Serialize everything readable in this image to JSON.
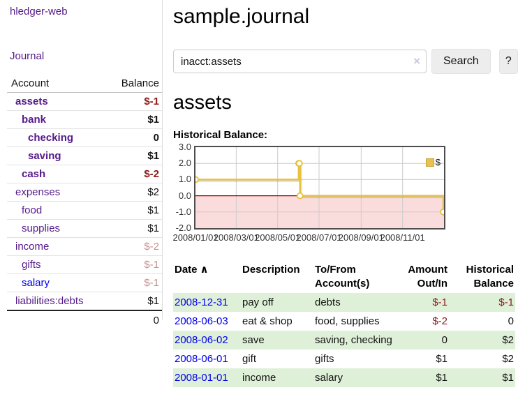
{
  "app": {
    "title": "hledger-web"
  },
  "colors": {
    "link_purple": "#551a8b",
    "link_blue": "#0000ee",
    "negative_strong": "#8b1a1a",
    "negative_faded": "#c68f8f",
    "row_stripe_green": "#dff0d8",
    "chart_line": "#e6c23f",
    "chart_marker_fill": "#fffef8",
    "chart_negative_fill": "#fbdcdc",
    "chart_zero_line": "#990000",
    "chart_grid": "#cccccc",
    "button_bg": "#ededed"
  },
  "sidebar": {
    "nav": [
      {
        "label": "Journal"
      }
    ],
    "accounts_table": {
      "headers": {
        "account": "Account",
        "balance": "Balance"
      },
      "rows": [
        {
          "name": "assets",
          "indent": 0,
          "bold": true,
          "balance": "$-1",
          "balance_color": "negative",
          "link_color": "purple"
        },
        {
          "name": "bank",
          "indent": 1,
          "bold": true,
          "balance": "$1",
          "balance_color": "normal",
          "link_color": "purple"
        },
        {
          "name": "checking",
          "indent": 2,
          "bold": true,
          "balance": "0",
          "balance_color": "normal",
          "link_color": "purple"
        },
        {
          "name": "saving",
          "indent": 2,
          "bold": true,
          "balance": "$1",
          "balance_color": "normal",
          "link_color": "purple"
        },
        {
          "name": "cash",
          "indent": 1,
          "bold": true,
          "balance": "$-2",
          "balance_color": "negative",
          "link_color": "purple"
        },
        {
          "name": "expenses",
          "indent": 0,
          "bold": false,
          "balance": "$2",
          "balance_color": "normal",
          "link_color": "purple"
        },
        {
          "name": "food",
          "indent": 1,
          "bold": false,
          "balance": "$1",
          "balance_color": "normal",
          "link_color": "purple"
        },
        {
          "name": "supplies",
          "indent": 1,
          "bold": false,
          "balance": "$1",
          "balance_color": "normal",
          "link_color": "purple"
        },
        {
          "name": "income",
          "indent": 0,
          "bold": false,
          "balance": "$-2",
          "balance_color": "faded",
          "link_color": "purple"
        },
        {
          "name": "gifts",
          "indent": 1,
          "bold": false,
          "balance": "$-1",
          "balance_color": "faded",
          "link_color": "purple"
        },
        {
          "name": "salary",
          "indent": 1,
          "bold": false,
          "balance": "$-1",
          "balance_color": "faded",
          "link_color": "blue"
        },
        {
          "name": "liabilities:debts",
          "indent": 0,
          "bold": false,
          "balance": "$1",
          "balance_color": "normal",
          "link_color": "purple"
        }
      ],
      "total": "0"
    }
  },
  "main": {
    "title": "sample.journal",
    "search": {
      "value": "inacct:assets",
      "clear_icon": "×",
      "button": "Search",
      "help_button": "?"
    },
    "account_heading": "assets",
    "chart_heading": "Historical Balance:",
    "register_table": {
      "sort_icon_glyph": "∧",
      "headers": [
        {
          "id": "date",
          "lines": [
            "Date"
          ],
          "align": "left",
          "sortable": true,
          "sort": "asc"
        },
        {
          "id": "description",
          "lines": [
            "Description"
          ],
          "align": "left"
        },
        {
          "id": "accounts",
          "lines": [
            "To/From",
            "Account(s)"
          ],
          "align": "left"
        },
        {
          "id": "amount",
          "lines": [
            "Amount",
            "Out/In"
          ],
          "align": "right"
        },
        {
          "id": "balance",
          "lines": [
            "Historical",
            "Balance"
          ],
          "align": "right"
        }
      ],
      "rows": [
        {
          "date": "2008-12-31",
          "description": "pay off",
          "accounts": "debts",
          "amount": "$-1",
          "amount_negative": true,
          "balance": "$-1",
          "balance_negative": true
        },
        {
          "date": "2008-06-03",
          "description": "eat & shop",
          "accounts": "food, supplies",
          "amount": "$-2",
          "amount_negative": true,
          "balance": "0",
          "balance_negative": false
        },
        {
          "date": "2008-06-02",
          "description": "save",
          "accounts": "saving, checking",
          "amount": "0",
          "amount_negative": false,
          "balance": "$2",
          "balance_negative": false
        },
        {
          "date": "2008-06-01",
          "description": "gift",
          "accounts": "gifts",
          "amount": "$1",
          "amount_negative": false,
          "balance": "$2",
          "balance_negative": false
        },
        {
          "date": "2008-01-01",
          "description": "income",
          "accounts": "salary",
          "amount": "$1",
          "amount_negative": false,
          "balance": "$1",
          "balance_negative": false
        }
      ]
    }
  },
  "chart_data": {
    "type": "line",
    "step": true,
    "title": "Historical Balance:",
    "series": [
      {
        "name": "$",
        "points": [
          [
            "2008-01-01",
            1
          ],
          [
            "2008-06-01",
            2
          ],
          [
            "2008-06-02",
            2
          ],
          [
            "2008-06-03",
            0
          ],
          [
            "2008-12-31",
            -1
          ]
        ]
      }
    ],
    "x_range": [
      "2008-01-01",
      "2009-01-01"
    ],
    "ylim": [
      -2,
      3
    ],
    "yticks": [
      3,
      2,
      1,
      0,
      -1,
      -2
    ],
    "ytick_labels": [
      "3.0",
      "2.0",
      "1.0",
      "0.0",
      "-1.0",
      "-2.0"
    ],
    "xticks": [
      "2008-01-01",
      "2008-03-01",
      "2008-05-01",
      "2008-07-01",
      "2008-09-01",
      "2008-11-01"
    ],
    "xtick_labels": [
      "2008/01/01",
      "2008/03/01",
      "2008/05/01",
      "2008/07/01",
      "2008/09/01",
      "2008/11/01"
    ],
    "grid": true,
    "legend": {
      "position": "top-right",
      "entries": [
        {
          "label": "$",
          "color": "#e8c152"
        }
      ]
    }
  }
}
